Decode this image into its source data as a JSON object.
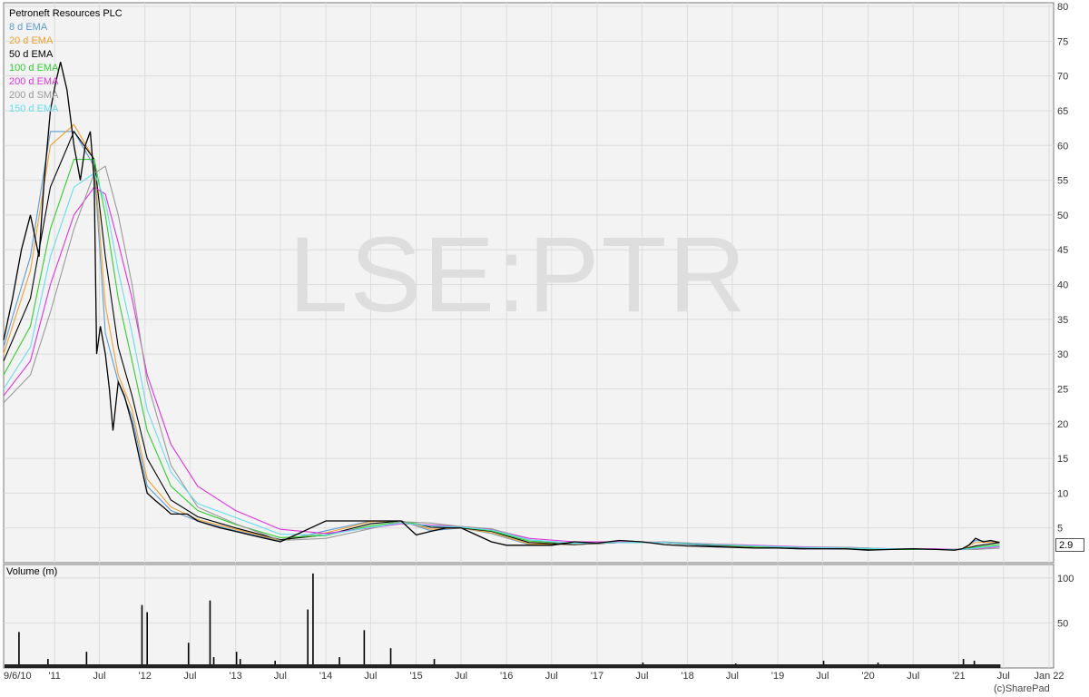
{
  "chart_data": {
    "type": "line",
    "title": "Petroneft Resources PLC",
    "watermark": "LSE:PTR",
    "legend": {
      "placement": "top-left",
      "entries": [
        {
          "name": "8 d EMA",
          "color": "#5b9bd5"
        },
        {
          "name": "20 d EMA",
          "color": "#f0a030"
        },
        {
          "name": "50 d EMA",
          "color": "#000000"
        },
        {
          "name": "100 d EMA",
          "color": "#33cc33"
        },
        {
          "name": "200 d EMA",
          "color": "#dd33dd"
        },
        {
          "name": "200 d SMA",
          "color": "#999999"
        },
        {
          "name": "150 d EMA",
          "color": "#66ddee"
        }
      ]
    },
    "x_tick_labels": [
      "9/6/10",
      "'11",
      "Jul",
      "'12",
      "Jul",
      "'13",
      "Jul",
      "'14",
      "Jul",
      "'15",
      "Jul",
      "'16",
      "Jul",
      "'17",
      "Jul",
      "'18",
      "Jul",
      "'19",
      "Jul",
      "'20",
      "Jul",
      "'21",
      "Jul",
      "Jan 22"
    ],
    "x_tick_dates": [
      "2010-06-09",
      "2011-01-01",
      "2011-07-01",
      "2012-01-01",
      "2012-07-01",
      "2013-01-01",
      "2013-07-01",
      "2014-01-01",
      "2014-07-01",
      "2015-01-01",
      "2015-07-01",
      "2016-01-01",
      "2016-07-01",
      "2017-01-01",
      "2017-07-01",
      "2018-01-01",
      "2018-07-01",
      "2019-01-01",
      "2019-07-01",
      "2020-01-01",
      "2020-07-01",
      "2021-01-01",
      "2021-07-01",
      "2022-01-01"
    ],
    "price_axis": {
      "ticks": [
        5,
        10,
        15,
        20,
        25,
        30,
        35,
        40,
        45,
        50,
        55,
        60,
        65,
        70,
        75,
        80
      ],
      "ylim": [
        0,
        80
      ],
      "grid": true,
      "position": "right"
    },
    "volume_axis": {
      "label": "Volume (m)",
      "ticks": [
        50,
        100
      ],
      "ylim": [
        0,
        115
      ],
      "grid": true
    },
    "last_price": "2.9",
    "series": [
      {
        "name": "Price",
        "color": "#000000",
        "x": [
          "2010-06-09",
          "2010-07-15",
          "2010-08-20",
          "2010-09-25",
          "2010-10-30",
          "2010-11-20",
          "2010-12-15",
          "2011-01-05",
          "2011-01-25",
          "2011-02-20",
          "2011-03-20",
          "2011-04-15",
          "2011-05-05",
          "2011-05-25",
          "2011-06-10",
          "2011-06-20",
          "2011-07-05",
          "2011-07-25",
          "2011-08-10",
          "2011-08-25",
          "2011-09-15",
          "2011-10-10",
          "2011-11-10",
          "2011-12-10",
          "2012-01-10",
          "2012-02-10",
          "2012-03-15",
          "2012-04-15",
          "2012-05-15",
          "2012-06-20",
          "2012-08-01",
          "2012-09-15",
          "2012-11-01",
          "2013-01-01",
          "2013-03-01",
          "2013-05-01",
          "2013-07-01",
          "2013-09-01",
          "2013-11-01",
          "2014-01-01",
          "2014-03-01",
          "2014-05-01",
          "2014-07-01",
          "2014-09-01",
          "2014-11-01",
          "2015-01-01",
          "2015-03-01",
          "2015-05-01",
          "2015-07-01",
          "2015-09-01",
          "2015-11-01",
          "2016-01-01",
          "2016-04-01",
          "2016-07-01",
          "2016-10-01",
          "2017-01-01",
          "2017-04-01",
          "2017-07-01",
          "2017-10-01",
          "2018-01-01",
          "2018-04-01",
          "2018-07-01",
          "2018-10-01",
          "2019-01-01",
          "2019-04-01",
          "2019-07-01",
          "2019-10-01",
          "2020-01-01",
          "2020-04-01",
          "2020-07-01",
          "2020-10-01",
          "2020-12-15",
          "2021-01-15",
          "2021-02-10",
          "2021-03-10",
          "2021-04-10",
          "2021-05-10",
          "2021-06-15"
        ],
        "values": [
          32,
          38,
          45,
          50,
          44,
          55,
          65,
          69,
          72,
          68,
          60,
          55,
          60,
          62,
          55,
          30,
          34,
          30,
          25,
          19,
          26,
          24,
          20,
          15,
          10,
          9,
          8,
          7,
          7,
          7,
          6,
          5.5,
          5,
          4.5,
          4,
          3.5,
          3,
          4,
          5,
          6,
          6,
          6,
          6,
          6,
          6,
          4,
          4.5,
          5,
          5,
          4,
          3,
          2.5,
          2.5,
          2.5,
          3,
          2.8,
          3.2,
          3,
          2.6,
          2.4,
          2.3,
          2.2,
          2.1,
          2.1,
          2,
          2,
          2,
          1.8,
          1.9,
          2,
          1.9,
          1.8,
          2.0,
          2.5,
          3.5,
          3,
          3.2,
          2.9
        ]
      },
      {
        "name": "8 d EMA",
        "color": "#5b9bd5",
        "x": [
          "2010-06-09",
          "2010-09-25",
          "2010-12-15",
          "2011-03-20",
          "2011-06-10",
          "2011-07-25",
          "2011-09-15",
          "2011-11-10",
          "2012-01-10",
          "2012-04-15",
          "2012-08-01",
          "2013-01-01",
          "2013-07-01",
          "2014-01-01",
          "2014-07-01",
          "2014-11-01",
          "2015-03-01",
          "2015-07-01",
          "2015-11-01",
          "2016-04-01",
          "2016-10-01",
          "2017-04-01",
          "2017-10-01",
          "2018-04-01",
          "2018-10-01",
          "2019-04-01",
          "2019-10-01",
          "2020-04-01",
          "2020-10-01",
          "2021-01-15",
          "2021-03-10",
          "2021-06-15"
        ],
        "values": [
          31,
          44,
          62,
          62,
          57,
          33,
          26,
          21,
          11,
          7.5,
          6,
          4.6,
          3.1,
          4.6,
          6,
          6,
          4.6,
          5,
          4.2,
          2.6,
          2.6,
          2.9,
          2.9,
          2.4,
          2.2,
          2.1,
          2,
          1.9,
          1.9,
          1.9,
          3.2,
          2.9
        ]
      },
      {
        "name": "20 d EMA",
        "color": "#f0a030",
        "x": [
          "2010-06-09",
          "2010-09-25",
          "2010-12-15",
          "2011-03-20",
          "2011-06-10",
          "2011-07-25",
          "2011-09-15",
          "2011-11-10",
          "2012-01-10",
          "2012-04-15",
          "2012-08-01",
          "2013-01-01",
          "2013-07-01",
          "2014-01-01",
          "2014-07-01",
          "2014-11-01",
          "2015-03-01",
          "2015-07-01",
          "2015-11-01",
          "2016-04-01",
          "2016-10-01",
          "2017-04-01",
          "2017-10-01",
          "2018-04-01",
          "2018-10-01",
          "2019-04-01",
          "2019-10-01",
          "2020-04-01",
          "2020-10-01",
          "2021-01-15",
          "2021-03-10",
          "2021-06-15"
        ],
        "values": [
          30,
          42,
          60,
          63,
          58,
          37,
          27,
          22,
          12,
          8,
          6.2,
          4.8,
          3.2,
          4.3,
          5.9,
          6,
          4.8,
          5,
          4.3,
          2.7,
          2.6,
          2.9,
          2.9,
          2.5,
          2.2,
          2.1,
          2,
          1.9,
          1.9,
          1.9,
          2.9,
          3
        ]
      },
      {
        "name": "50 d EMA",
        "color": "#000000",
        "x": [
          "2010-06-09",
          "2010-09-25",
          "2010-12-15",
          "2011-03-20",
          "2011-06-10",
          "2011-07-25",
          "2011-09-15",
          "2011-11-10",
          "2012-01-10",
          "2012-04-15",
          "2012-08-01",
          "2013-01-01",
          "2013-07-01",
          "2014-01-01",
          "2014-07-01",
          "2014-11-01",
          "2015-03-01",
          "2015-07-01",
          "2015-11-01",
          "2016-04-01",
          "2016-10-01",
          "2017-04-01",
          "2017-10-01",
          "2018-04-01",
          "2018-10-01",
          "2019-04-01",
          "2019-10-01",
          "2020-04-01",
          "2020-10-01",
          "2021-01-15",
          "2021-03-10",
          "2021-06-15"
        ],
        "values": [
          29,
          38,
          54,
          62,
          58,
          44,
          31,
          24,
          15,
          9,
          6.6,
          5,
          3.3,
          4,
          5.6,
          6,
          5.1,
          5,
          4.5,
          2.9,
          2.6,
          2.9,
          2.9,
          2.5,
          2.3,
          2.1,
          2,
          1.9,
          1.9,
          1.9,
          2.4,
          2.9
        ]
      },
      {
        "name": "100 d EMA",
        "color": "#33cc33",
        "x": [
          "2010-06-09",
          "2010-09-25",
          "2010-12-15",
          "2011-03-20",
          "2011-06-10",
          "2011-07-25",
          "2011-09-15",
          "2011-11-10",
          "2012-01-10",
          "2012-04-15",
          "2012-08-01",
          "2013-01-01",
          "2013-07-01",
          "2014-01-01",
          "2014-07-01",
          "2014-11-01",
          "2015-03-01",
          "2015-07-01",
          "2015-11-01",
          "2016-04-01",
          "2016-10-01",
          "2017-04-01",
          "2017-10-01",
          "2018-04-01",
          "2018-10-01",
          "2019-04-01",
          "2019-10-01",
          "2020-04-01",
          "2020-10-01",
          "2021-01-15",
          "2021-03-10",
          "2021-06-15"
        ],
        "values": [
          27,
          34,
          48,
          58,
          58,
          50,
          38,
          29,
          19,
          11,
          7.5,
          5.5,
          3.6,
          3.9,
          5.3,
          5.9,
          5.3,
          5.1,
          4.6,
          3.1,
          2.7,
          2.9,
          2.9,
          2.6,
          2.3,
          2.2,
          2.1,
          1.9,
          1.9,
          1.9,
          2.2,
          2.6
        ]
      },
      {
        "name": "200 d EMA",
        "color": "#dd33dd",
        "x": [
          "2010-06-09",
          "2010-09-25",
          "2010-12-15",
          "2011-03-20",
          "2011-06-10",
          "2011-07-25",
          "2011-09-15",
          "2011-11-10",
          "2012-01-10",
          "2012-04-15",
          "2012-08-01",
          "2013-01-01",
          "2013-07-01",
          "2014-01-01",
          "2014-07-01",
          "2014-11-01",
          "2015-03-01",
          "2015-07-01",
          "2015-11-01",
          "2016-04-01",
          "2016-10-01",
          "2017-04-01",
          "2017-10-01",
          "2018-04-01",
          "2018-10-01",
          "2019-04-01",
          "2019-10-01",
          "2020-04-01",
          "2020-10-01",
          "2021-01-15",
          "2021-03-10",
          "2021-06-15"
        ],
        "values": [
          24,
          29,
          40,
          50,
          54,
          53,
          46,
          38,
          27,
          17,
          11,
          7.5,
          4.8,
          4.2,
          5,
          5.6,
          5.4,
          5.2,
          4.8,
          3.5,
          3,
          3,
          2.9,
          2.7,
          2.5,
          2.3,
          2.2,
          2,
          2,
          1.9,
          2,
          2.3
        ]
      },
      {
        "name": "200 d SMA",
        "color": "#999999",
        "x": [
          "2010-06-09",
          "2010-09-25",
          "2010-12-15",
          "2011-03-20",
          "2011-06-10",
          "2011-07-25",
          "2011-09-15",
          "2011-11-10",
          "2012-01-10",
          "2012-04-15",
          "2012-08-01",
          "2013-01-01",
          "2013-07-01",
          "2014-01-01",
          "2014-07-01",
          "2014-11-01",
          "2015-03-01",
          "2015-07-01",
          "2015-11-01",
          "2016-04-01",
          "2016-10-01",
          "2017-04-01",
          "2017-10-01",
          "2018-04-01",
          "2018-10-01",
          "2019-04-01",
          "2019-10-01",
          "2020-04-01",
          "2020-10-01",
          "2021-01-15",
          "2021-03-10",
          "2021-06-15"
        ],
        "values": [
          23,
          27,
          36,
          48,
          56,
          57,
          50,
          40,
          26,
          14,
          8,
          5.6,
          3.2,
          3.5,
          4.9,
          5.9,
          5.7,
          5.2,
          4.9,
          3.3,
          2.7,
          2.9,
          3,
          2.7,
          2.4,
          2.2,
          2.2,
          2,
          1.9,
          1.9,
          1.9,
          2.1
        ]
      },
      {
        "name": "150 d EMA",
        "color": "#66ddee",
        "x": [
          "2010-06-09",
          "2010-09-25",
          "2010-12-15",
          "2011-03-20",
          "2011-06-10",
          "2011-07-25",
          "2011-09-15",
          "2011-11-10",
          "2012-01-10",
          "2012-04-15",
          "2012-08-01",
          "2013-01-01",
          "2013-07-01",
          "2014-01-01",
          "2014-07-01",
          "2014-11-01",
          "2015-03-01",
          "2015-07-01",
          "2015-11-01",
          "2016-04-01",
          "2016-10-01",
          "2017-04-01",
          "2017-10-01",
          "2018-04-01",
          "2018-10-01",
          "2019-04-01",
          "2019-10-01",
          "2020-04-01",
          "2020-10-01",
          "2021-01-15",
          "2021-03-10",
          "2021-06-15"
        ],
        "values": [
          25,
          31,
          44,
          54,
          56,
          52,
          42,
          33,
          22,
          13,
          8.5,
          6.5,
          4.1,
          4,
          5.1,
          5.7,
          5.3,
          5.1,
          4.7,
          3.3,
          2.8,
          2.9,
          2.9,
          2.6,
          2.4,
          2.2,
          2.1,
          2,
          1.9,
          1.9,
          2.1,
          2.4
        ]
      }
    ],
    "volume": {
      "x": [
        "2010-08-10",
        "2010-12-05",
        "2011-05-10",
        "2011-12-20",
        "2012-01-10",
        "2012-06-25",
        "2012-09-20",
        "2012-10-05",
        "2013-01-05",
        "2013-01-20",
        "2013-06-10",
        "2013-10-20",
        "2013-11-10",
        "2014-02-25",
        "2014-06-05",
        "2014-09-20",
        "2015-03-15",
        "2017-07-05",
        "2018-07-15",
        "2019-07-05",
        "2020-02-10",
        "2021-01-20",
        "2021-03-05",
        "2021-05-20"
      ],
      "values": [
        40,
        10,
        18,
        70,
        62,
        28,
        75,
        12,
        18,
        10,
        8,
        65,
        105,
        12,
        42,
        22,
        10,
        6,
        5,
        8,
        6,
        10,
        8,
        4
      ]
    }
  },
  "footer": {
    "copyright": "(c)SharePad"
  }
}
